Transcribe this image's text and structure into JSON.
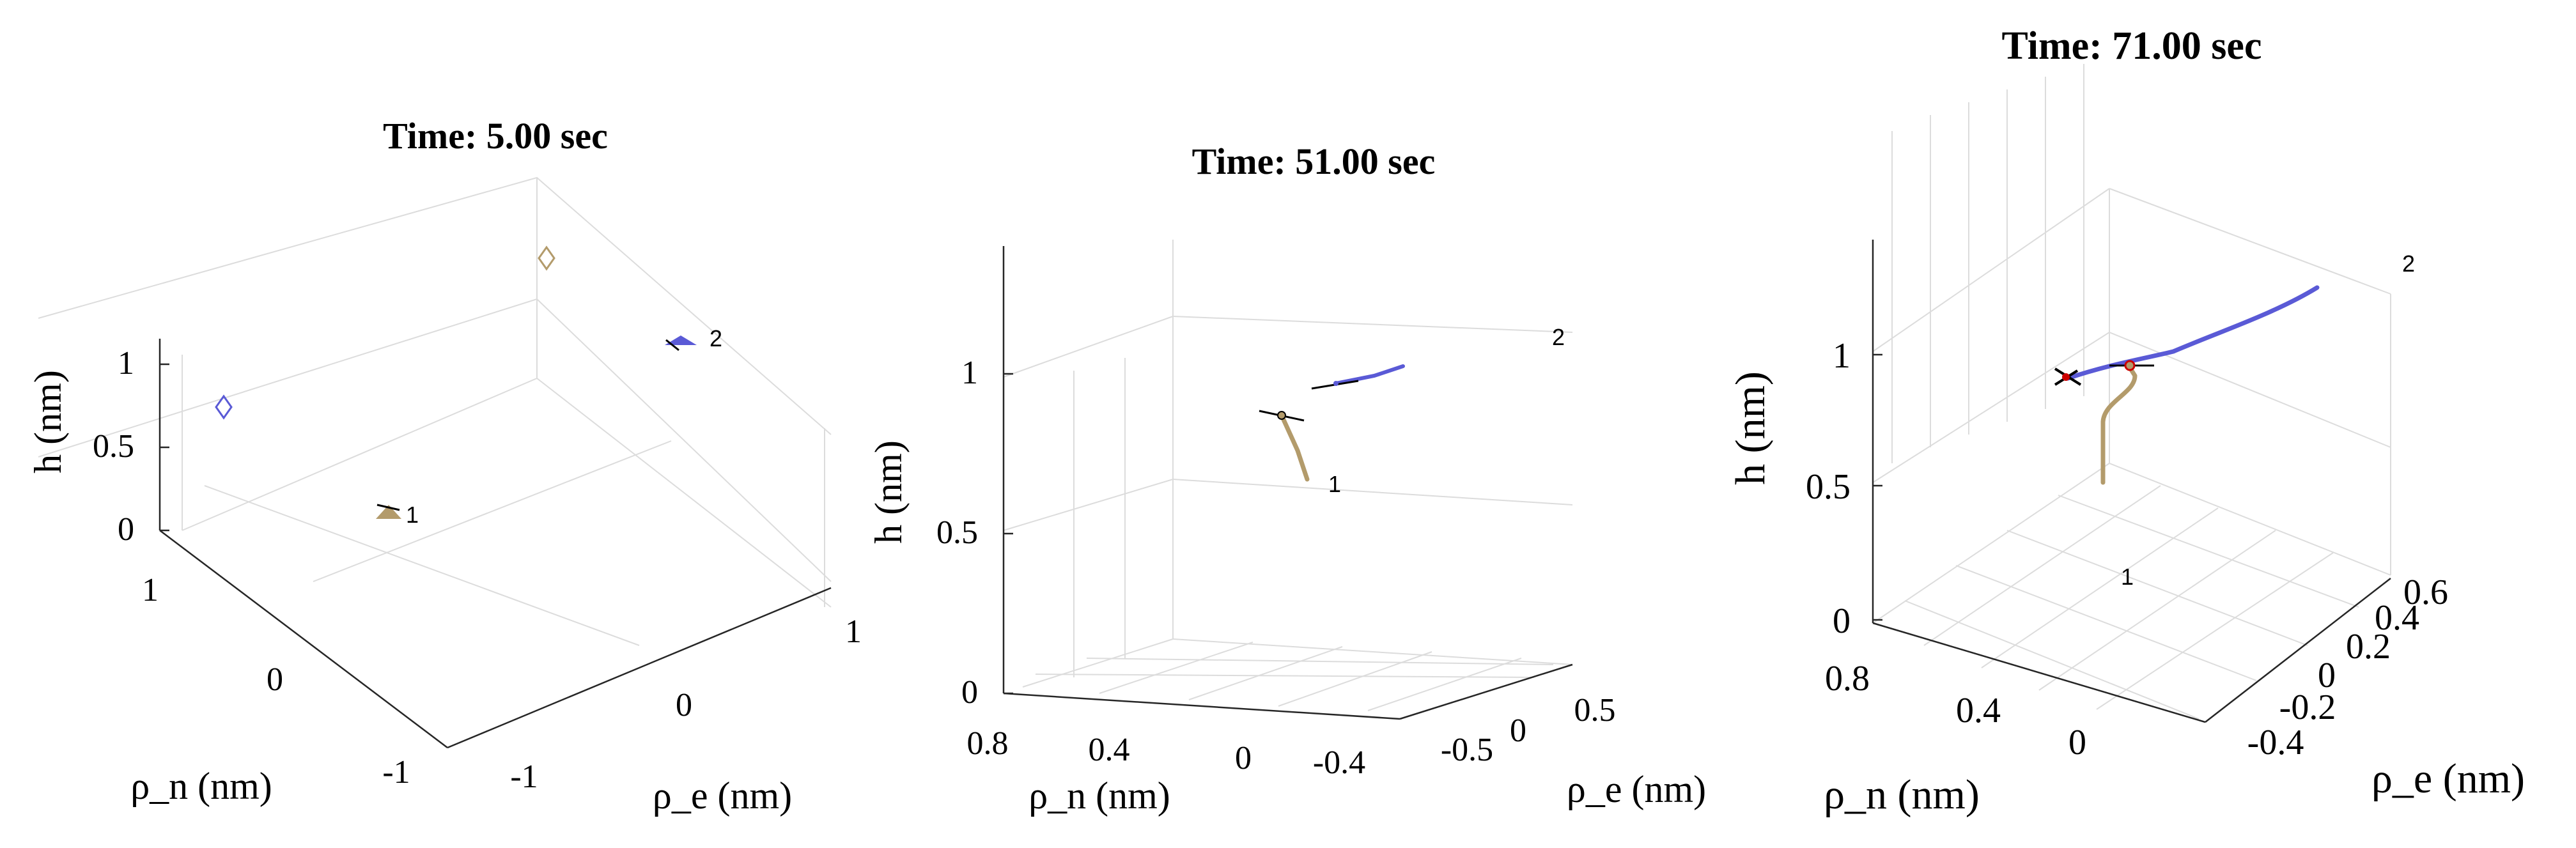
{
  "chart_data": [
    {
      "type": "scatter3d",
      "title": "Time: 5.00 sec",
      "xlabel": "ρ_n (nm)",
      "ylabel": "ρ_e (nm)",
      "zlabel": "h (nm)",
      "x_ticks": [
        "1",
        "0",
        "-1"
      ],
      "y_ticks": [
        "-1",
        "0",
        "1"
      ],
      "z_ticks": [
        "0",
        "0.5",
        "1"
      ],
      "grid": true,
      "series": [
        {
          "label": "1",
          "color": "#b39b6b",
          "path": [
            [
              0.2,
              0.2,
              0.05
            ]
          ]
        },
        {
          "label": "2",
          "color": "#5a5ad6",
          "path": [
            [
              -0.1,
              0.95,
              1.05
            ]
          ]
        }
      ],
      "markers": [
        {
          "shape": "diamond",
          "color": "#5a5ad6",
          "x": 1.0,
          "y": 0.8,
          "z": 0.7
        },
        {
          "shape": "diamond",
          "color": "#b39b6b",
          "x": -0.8,
          "y": 0.7,
          "z": 1.3
        }
      ]
    },
    {
      "type": "line3d",
      "title": "Time: 51.00 sec",
      "xlabel": "ρ_n (nm)",
      "ylabel": "ρ_e (nm)",
      "zlabel": "h (nm)",
      "x_ticks": [
        "0.8",
        "0.4",
        "0",
        "-0.4"
      ],
      "y_ticks": [
        "-0.5",
        "0",
        "0.5"
      ],
      "z_ticks": [
        "0",
        "0.5",
        "1"
      ],
      "grid": true,
      "series": [
        {
          "label": "1",
          "color": "#b39b6b",
          "path": [
            [
              0.2,
              -0.3,
              0.7
            ],
            [
              0.23,
              -0.28,
              0.8
            ],
            [
              0.28,
              -0.26,
              0.88
            ]
          ]
        },
        {
          "label": "2",
          "color": "#5a5ad6",
          "path": [
            [
              0.0,
              0.0,
              1.0
            ],
            [
              -0.3,
              0.2,
              1.05
            ],
            [
              -0.4,
              0.4,
              1.1
            ]
          ]
        }
      ]
    },
    {
      "type": "line3d",
      "title": "Time: 71.00 sec",
      "xlabel": "ρ_n (nm)",
      "ylabel": "ρ_e (nm)",
      "zlabel": "h (nm)",
      "x_ticks": [
        "0.8",
        "0.4",
        "0"
      ],
      "y_ticks": [
        "-0.4",
        "-0.2",
        "0",
        "0.2",
        "0.4",
        "0.6"
      ],
      "z_ticks": [
        "0",
        "0.5",
        "1"
      ],
      "grid": true,
      "series": [
        {
          "label": "1",
          "color": "#b39b6b",
          "path": [
            [
              0.3,
              0.0,
              0.5
            ],
            [
              0.32,
              0.0,
              0.7
            ],
            [
              0.4,
              0.05,
              0.85
            ],
            [
              0.35,
              0.1,
              0.95
            ]
          ]
        },
        {
          "label": "2",
          "color": "#5a5ad6",
          "path": [
            [
              0.55,
              -0.3,
              0.9
            ],
            [
              0.3,
              0.0,
              0.97
            ],
            [
              0.0,
              0.4,
              1.1
            ],
            [
              -0.3,
              0.7,
              1.25
            ]
          ]
        }
      ]
    }
  ]
}
